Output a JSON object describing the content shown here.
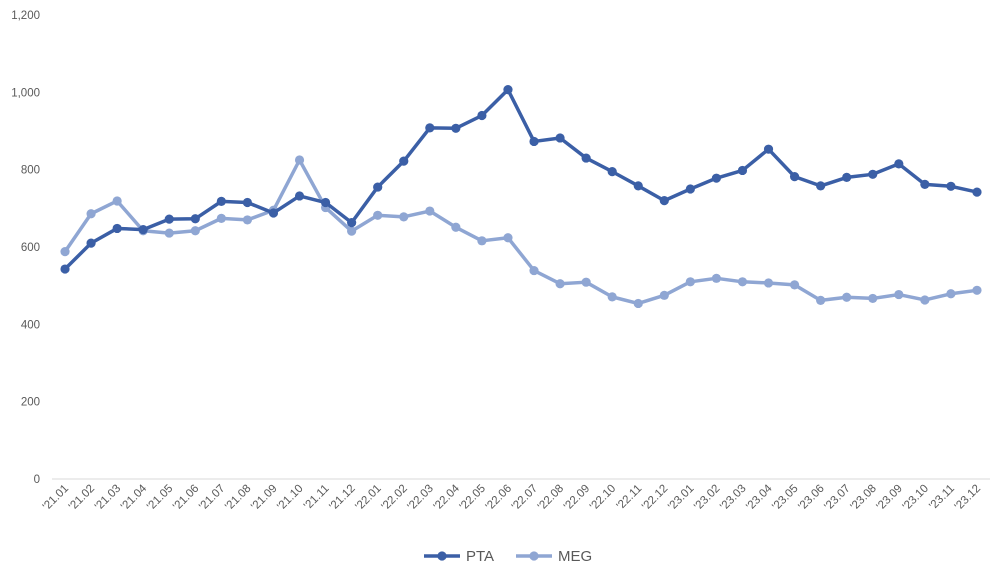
{
  "chart_data": {
    "type": "line",
    "title": "",
    "xlabel": "",
    "ylabel": "",
    "ylim": [
      0,
      1200
    ],
    "ytick_values": [
      0,
      200,
      400,
      600,
      800,
      1000,
      1200
    ],
    "ytick_labels": [
      "0",
      "200",
      "400",
      "600",
      "800",
      "1,000",
      "1,200"
    ],
    "grid": false,
    "legend_position": "bottom-center",
    "categories": [
      "'21.01",
      "'21.02",
      "'21.03",
      "'21.04",
      "'21.05",
      "'21.06",
      "'21.07",
      "'21.08",
      "'21.09",
      "'21.10",
      "'21.11",
      "'21.12",
      "'22.01",
      "'22.02",
      "'22.03",
      "'22.04",
      "'22.05",
      "'22.06",
      "'22.07",
      "'22.08",
      "'22.09",
      "'22.10",
      "'22.11",
      "'22.12",
      "'23.01",
      "'23.02",
      "'23.03",
      "'23.04",
      "'23.05",
      "'23.06",
      "'23.07",
      "'23.08",
      "'23.09",
      "'23.10",
      "'23.11",
      "'23.12"
    ],
    "series": [
      {
        "name": "PTA",
        "color": "#3b5fa6",
        "values": [
          543,
          610,
          648,
          645,
          672,
          673,
          718,
          715,
          688,
          732,
          715,
          663,
          755,
          822,
          908,
          907,
          940,
          1007,
          873,
          882,
          830,
          795,
          758,
          720,
          750,
          778,
          798,
          853,
          782,
          758,
          780,
          788,
          815,
          762,
          757,
          742
        ]
      },
      {
        "name": "MEG",
        "color": "#8fa6d3",
        "values": [
          588,
          686,
          719,
          642,
          636,
          642,
          674,
          670,
          695,
          825,
          702,
          641,
          682,
          678,
          693,
          651,
          616,
          624,
          539,
          505,
          509,
          471,
          454,
          475,
          510,
          519,
          510,
          507,
          502,
          462,
          470,
          467,
          477,
          463,
          479,
          488
        ]
      }
    ]
  }
}
